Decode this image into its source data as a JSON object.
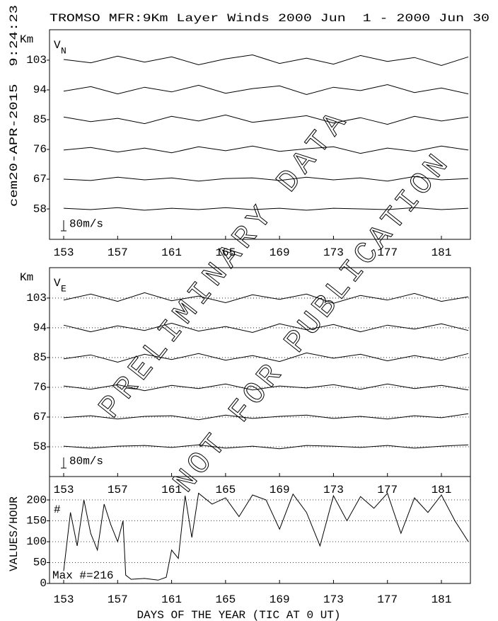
{
  "header": {
    "title": "TROMSO MFR:9Km Layer Winds 2000 Jun  1 - 2000 Jun 30",
    "stamp": "cem20-APR-2015  9:24:23"
  },
  "watermark": [
    "PRELIMINARY DATA",
    "NOT FOR PUBLICATION"
  ],
  "chart_data": [
    {
      "type": "line",
      "label": {
        "main": "V",
        "sub": "N"
      },
      "ylabel": "Km",
      "color": "#000000",
      "xlim": [
        151.95,
        183.15
      ],
      "xticks": [
        153,
        157,
        161,
        165,
        169,
        173,
        177,
        181
      ],
      "ylim": [
        48.8,
        112.2
      ],
      "yticks": [
        58,
        67,
        76,
        85,
        94,
        103
      ],
      "grid": false,
      "scale_bar": {
        "label": "80m/s",
        "value": 80
      },
      "x": [
        153,
        155,
        157,
        159,
        161,
        163,
        165,
        167,
        169,
        171,
        173,
        175,
        177,
        179,
        181,
        183
      ],
      "series": [
        {
          "level": 103,
          "values": [
            5,
            -20,
            30,
            -15,
            25,
            -35,
            10,
            40,
            -25,
            15,
            -30,
            35,
            -10,
            20,
            -40,
            25
          ]
        },
        {
          "level": 94,
          "values": [
            -10,
            25,
            -30,
            20,
            -15,
            35,
            -25,
            10,
            30,
            -35,
            20,
            -5,
            40,
            -20,
            15,
            -30
          ]
        },
        {
          "level": 85,
          "values": [
            20,
            -15,
            10,
            -30,
            25,
            -10,
            35,
            -20,
            5,
            30,
            -25,
            15,
            -35,
            25,
            -10,
            20
          ]
        },
        {
          "level": 76,
          "values": [
            -5,
            15,
            -20,
            10,
            -25,
            20,
            -10,
            25,
            -15,
            5,
            20,
            -30,
            10,
            -15,
            25,
            -5
          ]
        },
        {
          "level": 67,
          "values": [
            0,
            -10,
            15,
            -5,
            10,
            -15,
            5,
            10,
            -10,
            15,
            -5,
            10,
            -15,
            20,
            -5,
            5
          ]
        },
        {
          "level": 58,
          "values": [
            5,
            -5,
            10,
            -10,
            5,
            -5,
            10,
            -5,
            5,
            -10,
            5,
            0,
            -5,
            10,
            -5,
            5
          ]
        }
      ]
    },
    {
      "type": "line",
      "label": {
        "main": "V",
        "sub": "E"
      },
      "ylabel": "Km",
      "color": "#000000",
      "xlim": [
        151.95,
        183.15
      ],
      "xticks": [
        153,
        157,
        161,
        165,
        169,
        173,
        177,
        181
      ],
      "ylim": [
        49,
        112.2
      ],
      "yticks": [
        58,
        67,
        76,
        85,
        94,
        103
      ],
      "grid": true,
      "scale_bar": {
        "label": "80m/s",
        "value": 80
      },
      "x": [
        153,
        155,
        157,
        159,
        161,
        163,
        165,
        167,
        169,
        171,
        173,
        175,
        177,
        179,
        181,
        183
      ],
      "series": [
        {
          "level": 103,
          "values": [
            -15,
            30,
            -25,
            40,
            -20,
            15,
            -35,
            25,
            -10,
            30,
            -40,
            20,
            -15,
            35,
            -25,
            10
          ]
        },
        {
          "level": 94,
          "values": [
            20,
            -30,
            15,
            -20,
            35,
            -25,
            10,
            -35,
            30,
            -15,
            25,
            -30,
            20,
            -10,
            30,
            -20
          ]
        },
        {
          "level": 85,
          "values": [
            -10,
            20,
            -35,
            25,
            -15,
            30,
            -20,
            15,
            -30,
            35,
            -5,
            25,
            -25,
            15,
            -20,
            30
          ]
        },
        {
          "level": 76,
          "values": [
            10,
            -15,
            20,
            -25,
            15,
            -10,
            25,
            -20,
            10,
            -5,
            20,
            -15,
            25,
            -10,
            15,
            -20
          ]
        },
        {
          "level": 67,
          "values": [
            -5,
            10,
            -15,
            5,
            10,
            -20,
            15,
            -10,
            5,
            15,
            -10,
            5,
            -15,
            10,
            -5,
            25
          ]
        },
        {
          "level": 58,
          "values": [
            5,
            -10,
            5,
            10,
            -5,
            15,
            -10,
            5,
            -15,
            10,
            5,
            -5,
            10,
            -10,
            5,
            15
          ]
        }
      ]
    },
    {
      "type": "line",
      "ylabel": "VALUES/HOUR",
      "series_label": "#",
      "annotation": "Max #=216",
      "xlabel": "DAYS OF THE YEAR (TIC AT 0 UT)",
      "color": "#000000",
      "xlim": [
        151.95,
        183.15
      ],
      "xticks": [
        153,
        157,
        161,
        165,
        169,
        173,
        177,
        181
      ],
      "ylim": [
        0,
        256
      ],
      "yticks": [
        0,
        50,
        100,
        150,
        200
      ],
      "grid": true,
      "x": [
        153,
        153.5,
        154,
        154.5,
        155,
        155.5,
        156,
        156.5,
        157,
        157.4,
        157.6,
        158,
        159,
        160,
        160.6,
        161,
        161.5,
        162,
        162.5,
        163,
        164,
        165,
        166,
        167,
        168,
        169,
        170,
        171,
        172,
        173,
        174,
        175,
        176,
        177,
        178,
        179,
        180,
        181,
        182,
        183
      ],
      "values": [
        30,
        170,
        90,
        200,
        120,
        80,
        190,
        140,
        100,
        150,
        20,
        10,
        12,
        8,
        15,
        80,
        60,
        210,
        110,
        216,
        190,
        205,
        160,
        212,
        200,
        130,
        214,
        170,
        90,
        210,
        150,
        208,
        180,
        216,
        120,
        205,
        170,
        212,
        150,
        100
      ]
    }
  ]
}
